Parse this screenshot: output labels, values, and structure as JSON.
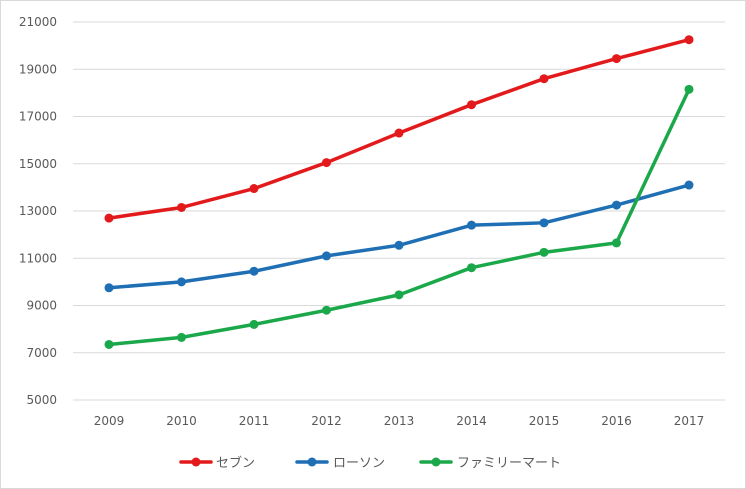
{
  "chart_data": {
    "type": "line",
    "title": "",
    "xlabel": "",
    "ylabel": "",
    "categories": [
      "2009",
      "2010",
      "2011",
      "2012",
      "2013",
      "2014",
      "2015",
      "2016",
      "2017"
    ],
    "ylim": [
      5000,
      21000
    ],
    "yticks": [
      5000,
      7000,
      9000,
      11000,
      13000,
      15000,
      17000,
      19000,
      21000
    ],
    "ytick_labels": [
      "5000",
      "7000",
      "9000",
      "11000",
      "13000",
      "15000",
      "17000",
      "19000",
      "21000"
    ],
    "grid": "horizontal",
    "legend_position": "bottom",
    "series": [
      {
        "name": "セブン",
        "color": "#e31a1c",
        "values": [
          12700,
          13150,
          13950,
          15050,
          16300,
          17500,
          18600,
          19450,
          20250
        ]
      },
      {
        "name": "ローソン",
        "color": "#1f6fb5",
        "values": [
          9750,
          10000,
          10450,
          11100,
          11550,
          12400,
          12500,
          13250,
          14100
        ]
      },
      {
        "name": "ファミリーマート",
        "color": "#1ba84a",
        "values": [
          7350,
          7650,
          8200,
          8800,
          9450,
          10600,
          11250,
          11650,
          18150
        ]
      }
    ]
  }
}
